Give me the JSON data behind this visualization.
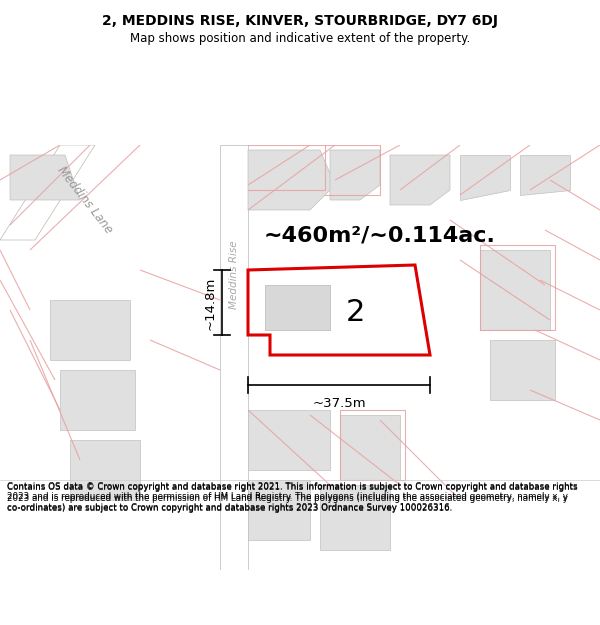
{
  "title_line1": "2, MEDDINS RISE, KINVER, STOURBRIDGE, DY7 6DJ",
  "title_line2": "Map shows position and indicative extent of the property.",
  "footer_text": "Contains OS data © Crown copyright and database right 2021. This information is subject to Crown copyright and database rights 2023 and is reproduced with the permission of HM Land Registry. The polygons (including the associated geometry, namely x, y co-ordinates) are subject to Crown copyright and database rights 2023 Ordnance Survey 100026316.",
  "bg_color": "#ffffff",
  "map_bg": "#f2f2f2",
  "boundary_color": "#e8a0a0",
  "boundary_lw": 0.8,
  "plot_color": "#dd0000",
  "plot_lw": 2.2,
  "area_text": "~460m²/~0.114ac.",
  "number_text": "2",
  "dim_width": "~37.5m",
  "dim_height": "~14.8m",
  "street_label1": "Meddins Lane",
  "street_label2": "Meddins Rise"
}
